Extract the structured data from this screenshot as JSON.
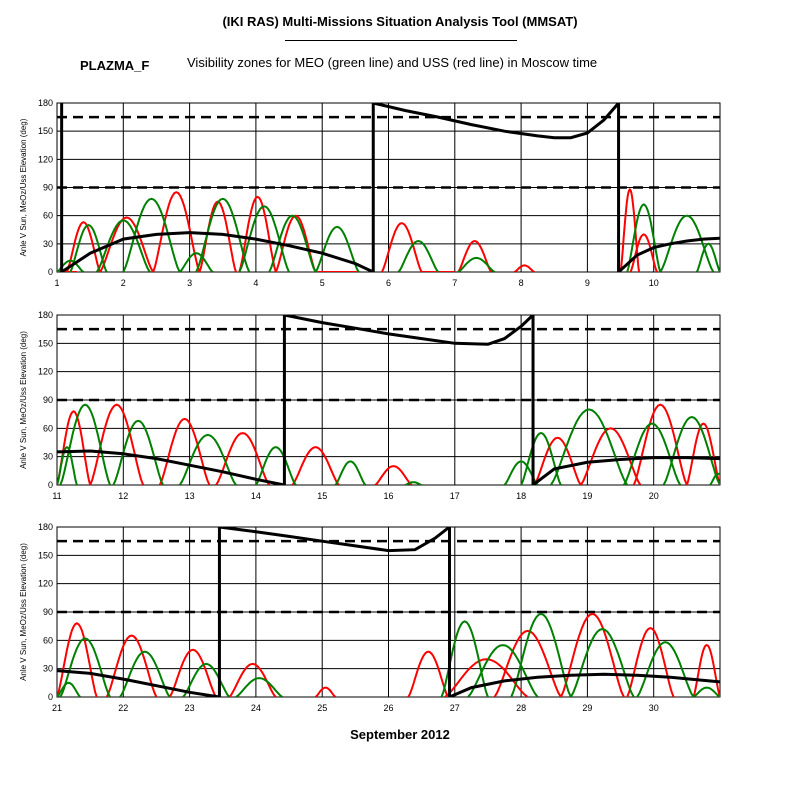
{
  "header": {
    "title": "(IKI RAS) Multi-Missions Situation Analysis Tool (MMSAT)",
    "satellite": "PLAZMA_F",
    "subtitle": "Visibility zones for MEO (green line) and USS (red line) in Moscow time"
  },
  "footer": {
    "month_label": "September 2012"
  },
  "colors": {
    "meo": "#008000",
    "uss": "#ff0000",
    "sun_angle": "#000000",
    "dashed": "#000000"
  },
  "chart_data": [
    {
      "type": "line",
      "panel": 1,
      "xlim": [
        1,
        11
      ],
      "ylim": [
        0,
        180
      ],
      "ylabel": "Anle V Sun, MeOz/Uss Elevation (deg)",
      "xticks": [
        1,
        2,
        3,
        4,
        5,
        6,
        7,
        8,
        9,
        10
      ],
      "yticks": [
        0,
        30,
        60,
        90,
        120,
        150,
        180
      ],
      "grid": true,
      "reference_lines": [
        90,
        165
      ],
      "series": [
        {
          "name": "USS",
          "color": "#ff0000",
          "visibility_passes": [
            [
              1.02,
              1.3,
              0
            ],
            [
              1.15,
              1.65,
              53
            ],
            [
              1.65,
              2.45,
              58
            ],
            [
              2.45,
              3.15,
              85
            ],
            [
              3.15,
              3.7,
              75
            ],
            [
              3.75,
              4.3,
              80
            ],
            [
              4.3,
              4.9,
              60
            ],
            [
              4.9,
              5.55,
              0
            ],
            [
              5.9,
              6.5,
              52
            ],
            [
              6.5,
              7.0,
              0
            ],
            [
              7.05,
              7.55,
              33
            ],
            [
              7.9,
              8.2,
              7
            ],
            [
              9.5,
              9.78,
              88
            ],
            [
              9.65,
              10.05,
              40
            ]
          ]
        },
        {
          "name": "MEO",
          "color": "#008000",
          "visibility_passes": [
            [
              1.0,
              1.4,
              12
            ],
            [
              1.2,
              1.75,
              50
            ],
            [
              1.6,
              2.4,
              55
            ],
            [
              2.0,
              2.85,
              78
            ],
            [
              2.85,
              3.35,
              20
            ],
            [
              3.1,
              3.9,
              78
            ],
            [
              3.75,
              4.5,
              70
            ],
            [
              4.2,
              4.9,
              60
            ],
            [
              4.9,
              5.55,
              48
            ],
            [
              6.15,
              6.75,
              33
            ],
            [
              7.05,
              7.6,
              15
            ],
            [
              9.6,
              10.1,
              72
            ],
            [
              10.1,
              10.9,
              60
            ],
            [
              10.65,
              11.0,
              30
            ]
          ]
        },
        {
          "name": "Sun angle",
          "color": "#000000",
          "segments": [
            {
              "x": [
                1.07,
                1.5,
                2.0,
                2.5,
                3.0,
                3.5,
                4.0,
                4.5,
                5.0,
                5.5,
                5.77
              ],
              "y": [
                0,
                20,
                35,
                40,
                42,
                40,
                35,
                28,
                20,
                9,
                0
              ]
            },
            {
              "x": [
                5.77,
                6.25,
                6.75,
                7.25,
                7.75,
                8.25,
                8.5,
                8.75,
                9.0,
                9.25,
                9.47
              ],
              "y": [
                180,
                172,
                165,
                157,
                150,
                145,
                143,
                143,
                148,
                162,
                180
              ]
            },
            {
              "x": [
                9.47,
                9.75,
                10.0,
                10.25,
                10.5,
                10.75,
                11.0
              ],
              "y": [
                0,
                18,
                26,
                30,
                33,
                35,
                36
              ]
            }
          ],
          "verticals": [
            1.07,
            5.77,
            9.47
          ]
        }
      ]
    },
    {
      "type": "line",
      "panel": 2,
      "xlim": [
        11,
        21
      ],
      "ylim": [
        0,
        180
      ],
      "ylabel": "Anle V Sun, MeOz/Uss Elevation (deg)",
      "xticks": [
        11,
        12,
        13,
        14,
        15,
        16,
        17,
        18,
        19,
        20
      ],
      "yticks": [
        0,
        30,
        60,
        90,
        120,
        150,
        180
      ],
      "grid": true,
      "reference_lines": [
        90,
        165
      ],
      "series": [
        {
          "name": "USS",
          "color": "#ff0000",
          "visibility_passes": [
            [
              11.0,
              11.5,
              78
            ],
            [
              11.5,
              12.3,
              85
            ],
            [
              12.55,
              13.3,
              70
            ],
            [
              13.4,
              14.2,
              55
            ],
            [
              14.55,
              15.25,
              40
            ],
            [
              15.8,
              16.35,
              20
            ],
            [
              18.2,
              18.9,
              50
            ],
            [
              18.9,
              19.8,
              60
            ],
            [
              19.7,
              20.5,
              85
            ],
            [
              20.5,
              21.0,
              65
            ]
          ]
        },
        {
          "name": "MEO",
          "color": "#008000",
          "visibility_passes": [
            [
              11.0,
              11.3,
              40
            ],
            [
              11.05,
              11.8,
              85
            ],
            [
              11.85,
              12.6,
              68
            ],
            [
              12.85,
              13.7,
              53
            ],
            [
              14.0,
              14.6,
              40
            ],
            [
              15.2,
              15.65,
              25
            ],
            [
              16.25,
              16.5,
              3
            ],
            [
              17.75,
              18.25,
              25
            ],
            [
              18.0,
              18.6,
              55
            ],
            [
              18.45,
              19.6,
              80
            ],
            [
              19.55,
              20.4,
              65
            ],
            [
              20.15,
              21.0,
              72
            ],
            [
              20.85,
              21.1,
              12
            ]
          ]
        },
        {
          "name": "Sun angle",
          "color": "#000000",
          "segments": [
            {
              "x": [
                11.0,
                11.5,
                12.0,
                12.5,
                13.0,
                13.5,
                14.0,
                14.43
              ],
              "y": [
                35,
                36,
                33,
                28,
                21,
                14,
                6,
                0
              ]
            },
            {
              "x": [
                14.43,
                15.0,
                15.5,
                16.0,
                16.5,
                17.0,
                17.5,
                17.75,
                18.0,
                18.18
              ],
              "y": [
                180,
                172,
                166,
                160,
                155,
                150,
                149,
                155,
                168,
                180
              ]
            },
            {
              "x": [
                18.18,
                18.5,
                19.0,
                19.5,
                20.0,
                20.5,
                21.0
              ],
              "y": [
                0,
                17,
                24,
                27,
                29,
                29,
                28
              ]
            }
          ],
          "verticals": [
            14.43,
            18.18
          ]
        }
      ]
    },
    {
      "type": "line",
      "panel": 3,
      "xlim": [
        21,
        31
      ],
      "ylim": [
        0,
        180
      ],
      "ylabel": "Anle V Sun, MeOz/Uss Elevation (deg)",
      "xticks": [
        21,
        22,
        23,
        24,
        25,
        26,
        27,
        28,
        29,
        30
      ],
      "yticks": [
        0,
        30,
        60,
        90,
        120,
        150,
        180
      ],
      "grid": true,
      "reference_lines": [
        90,
        165
      ],
      "series": [
        {
          "name": "USS",
          "color": "#ff0000",
          "visibility_passes": [
            [
              21.0,
              21.6,
              78
            ],
            [
              21.75,
              22.5,
              65
            ],
            [
              22.7,
              23.4,
              50
            ],
            [
              23.6,
              24.3,
              35
            ],
            [
              24.9,
              25.2,
              10
            ],
            [
              26.3,
              26.9,
              48
            ],
            [
              26.85,
              28.1,
              40
            ],
            [
              27.6,
              28.6,
              70
            ],
            [
              28.6,
              29.55,
              88
            ],
            [
              29.6,
              30.3,
              73
            ],
            [
              30.6,
              31.0,
              55
            ]
          ]
        },
        {
          "name": "MEO",
          "color": "#008000",
          "visibility_passes": [
            [
              21.0,
              21.35,
              15
            ],
            [
              21.05,
              21.8,
              62
            ],
            [
              21.95,
              22.7,
              48
            ],
            [
              22.9,
              23.6,
              35
            ],
            [
              23.7,
              24.4,
              20
            ],
            [
              26.8,
              27.5,
              80
            ],
            [
              27.2,
              28.25,
              55
            ],
            [
              27.85,
              28.75,
              88
            ],
            [
              28.75,
              29.7,
              72
            ],
            [
              29.75,
              30.6,
              58
            ],
            [
              30.6,
              31.0,
              10
            ]
          ]
        },
        {
          "name": "Sun angle",
          "color": "#000000",
          "segments": [
            {
              "x": [
                21.0,
                21.5,
                22.0,
                22.5,
                23.0,
                23.45
              ],
              "y": [
                28,
                25,
                19,
                12,
                5,
                0
              ]
            },
            {
              "x": [
                23.45,
                24.0,
                24.5,
                25.0,
                25.5,
                26.0,
                26.4,
                26.7,
                26.92
              ],
              "y": [
                180,
                175,
                170,
                165,
                160,
                155,
                156,
                168,
                180
              ]
            },
            {
              "x": [
                26.92,
                27.25,
                27.75,
                28.25,
                28.75,
                29.25,
                29.75,
                30.25,
                31.0
              ],
              "y": [
                0,
                10,
                17,
                21,
                23,
                24,
                23,
                21,
                16
              ]
            }
          ],
          "verticals": [
            23.45,
            26.92
          ]
        }
      ]
    }
  ]
}
